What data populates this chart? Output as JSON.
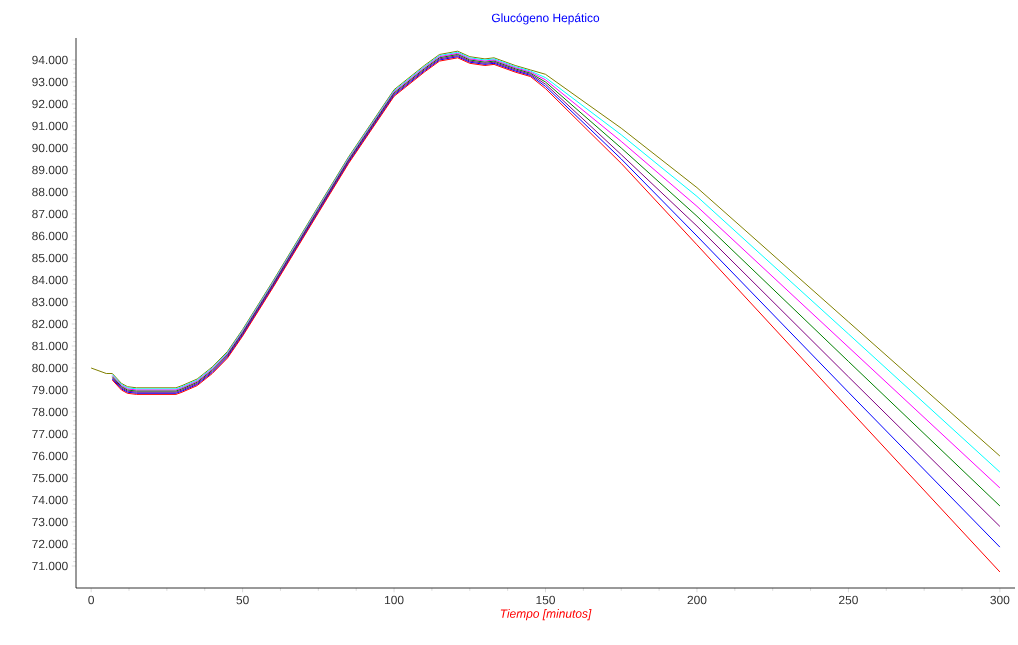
{
  "chart_data": {
    "type": "line",
    "title": "Glucógeno Hepático",
    "xlabel": "Tiempo [minutos]",
    "x": [
      0,
      5,
      7,
      10,
      12,
      15,
      20,
      25,
      28,
      30,
      35,
      40,
      45,
      50,
      60,
      75,
      85,
      100,
      110,
      115,
      121,
      125,
      130,
      133,
      140,
      145,
      150,
      175,
      200,
      250,
      300
    ],
    "series": [
      {
        "color": "#808000",
        "values": [
          80000,
          79750,
          79750,
          79300,
          79150,
          79100,
          79100,
          79100,
          79100,
          79200,
          79500,
          80050,
          80750,
          81750,
          83950,
          87350,
          89600,
          92650,
          93750,
          94250,
          94400,
          94150,
          94050,
          94100,
          93750,
          93550,
          93350,
          90900,
          88200,
          82100,
          76000
        ]
      },
      {
        "color": "#00ffff",
        "values": [
          null,
          null,
          79700,
          79250,
          79100,
          79050,
          79050,
          79050,
          79050,
          79150,
          79450,
          80000,
          80700,
          81700,
          83900,
          87300,
          89550,
          92600,
          93700,
          94200,
          94350,
          94100,
          94000,
          94050,
          93700,
          93500,
          93200,
          90600,
          87800,
          81550,
          75270
        ]
      },
      {
        "color": "#ff00ff",
        "values": [
          null,
          null,
          79650,
          79200,
          79050,
          79000,
          79000,
          79000,
          79000,
          79100,
          79400,
          79950,
          80650,
          81650,
          83850,
          87250,
          89500,
          92550,
          93650,
          94150,
          94300,
          94050,
          93950,
          94000,
          93650,
          93450,
          93100,
          90300,
          87350,
          80950,
          74550
        ]
      },
      {
        "color": "#008000",
        "values": [
          null,
          null,
          79600,
          79150,
          79000,
          78950,
          78950,
          78950,
          78950,
          79050,
          79350,
          79900,
          80600,
          81600,
          83800,
          87200,
          89450,
          92500,
          93600,
          94100,
          94250,
          94000,
          93900,
          93950,
          93600,
          93400,
          93000,
          90000,
          86900,
          80300,
          73730
        ]
      },
      {
        "color": "#800080",
        "values": [
          null,
          null,
          79550,
          79100,
          78950,
          78900,
          78900,
          78900,
          78900,
          79000,
          79300,
          79850,
          80550,
          81550,
          83750,
          87150,
          89400,
          92450,
          93550,
          94050,
          94200,
          93950,
          93850,
          93900,
          93550,
          93350,
          92900,
          89700,
          86450,
          79600,
          72800
        ]
      },
      {
        "color": "#0000ff",
        "values": [
          null,
          null,
          79500,
          79050,
          78900,
          78850,
          78850,
          78850,
          78850,
          78950,
          79250,
          79800,
          80500,
          81500,
          83700,
          87100,
          89350,
          92400,
          93500,
          94000,
          94150,
          93900,
          93800,
          93850,
          93500,
          93300,
          92800,
          89500,
          86000,
          78900,
          71860
        ]
      },
      {
        "color": "#ff0000",
        "values": [
          null,
          null,
          79450,
          79000,
          78850,
          78800,
          78800,
          78800,
          78800,
          78900,
          79200,
          79750,
          80450,
          81450,
          83650,
          87050,
          89300,
          92350,
          93450,
          93950,
          94100,
          93850,
          93750,
          93800,
          93450,
          93250,
          92700,
          89300,
          85600,
          78150,
          70730
        ]
      }
    ],
    "xlim": [
      -5,
      305
    ],
    "ylim": [
      70000,
      95000
    ],
    "xticks": [
      0,
      50,
      100,
      150,
      200,
      250,
      300
    ],
    "yticks": [
      {
        "value": 71000,
        "label": "71.000"
      },
      {
        "value": 72000,
        "label": "72.000"
      },
      {
        "value": 73000,
        "label": "73.000"
      },
      {
        "value": 74000,
        "label": "74.000"
      },
      {
        "value": 75000,
        "label": "75.000"
      },
      {
        "value": 76000,
        "label": "76.000"
      },
      {
        "value": 77000,
        "label": "77.000"
      },
      {
        "value": 78000,
        "label": "78.000"
      },
      {
        "value": 79000,
        "label": "79.000"
      },
      {
        "value": 80000,
        "label": "80.000"
      },
      {
        "value": 81000,
        "label": "81.000"
      },
      {
        "value": 82000,
        "label": "82.000"
      },
      {
        "value": 83000,
        "label": "83.000"
      },
      {
        "value": 84000,
        "label": "84.000"
      },
      {
        "value": 85000,
        "label": "85.000"
      },
      {
        "value": 86000,
        "label": "86.000"
      },
      {
        "value": 87000,
        "label": "87.000"
      },
      {
        "value": 88000,
        "label": "88.000"
      },
      {
        "value": 89000,
        "label": "89.000"
      },
      {
        "value": 90000,
        "label": "90.000"
      },
      {
        "value": 91000,
        "label": "91.000"
      },
      {
        "value": 92000,
        "label": "92.000"
      },
      {
        "value": 93000,
        "label": "93.000"
      },
      {
        "value": 94000,
        "label": "94.000"
      }
    ]
  }
}
